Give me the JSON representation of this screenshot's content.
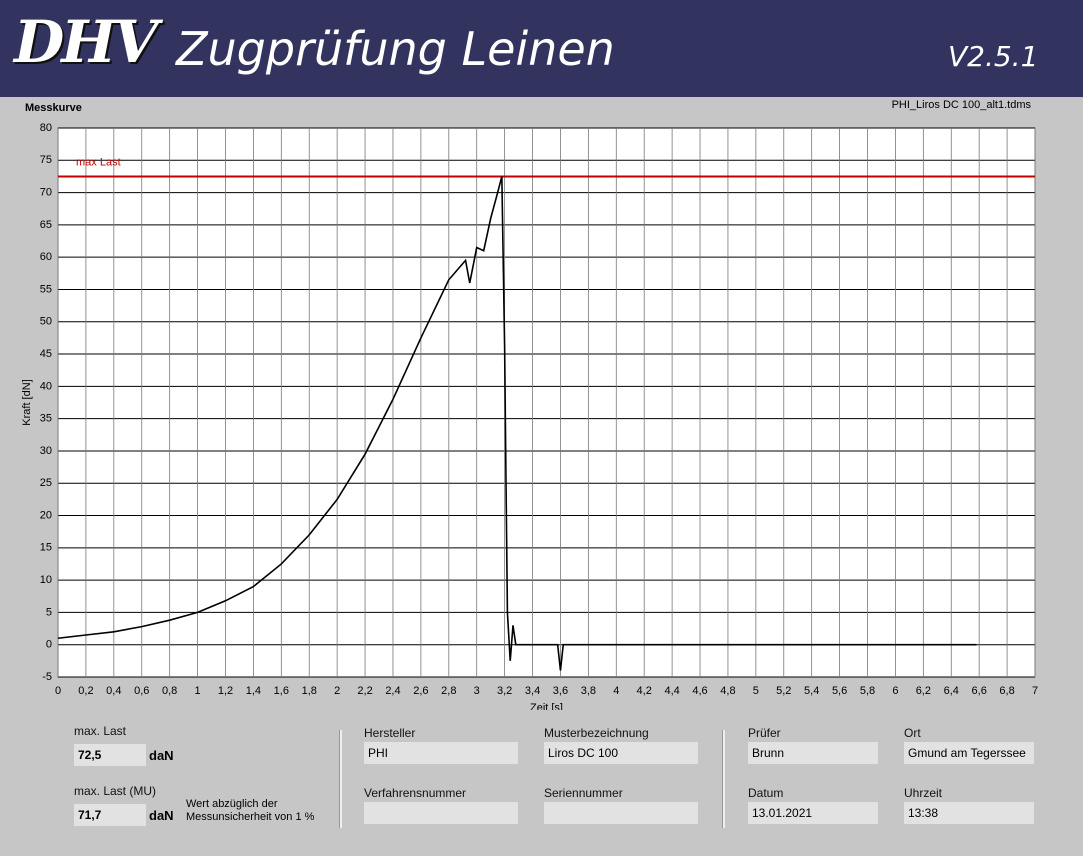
{
  "header": {
    "logo": "DHV",
    "title": "Zugprüfung Leinen",
    "version": "V2.5.1"
  },
  "panel_label": "Messkurve",
  "file_name": "PHI_Liros DC 100_alt1.tdms",
  "chart_data": {
    "type": "line",
    "x_label": "Zeit [s]",
    "y_label": "Kraft [dN]",
    "x": [
      0,
      0.2,
      0.4,
      0.6,
      0.8,
      1.0,
      1.2,
      1.4,
      1.6,
      1.8,
      2.0,
      2.2,
      2.4,
      2.6,
      2.8,
      2.92,
      2.95,
      3.0,
      3.05,
      3.1,
      3.15,
      3.18,
      3.2,
      3.21,
      3.22,
      3.24,
      3.26,
      3.28,
      3.3,
      3.4,
      3.5,
      3.58,
      3.6,
      3.62,
      3.8,
      4,
      4.5,
      5,
      5.5,
      6,
      6.5,
      6.58
    ],
    "values": [
      1,
      1.5,
      2,
      2.8,
      3.8,
      5,
      6.8,
      9,
      12.5,
      17,
      22.5,
      29.5,
      38,
      47.5,
      56.5,
      59.5,
      56,
      61.5,
      61,
      66,
      70,
      72.5,
      46,
      25,
      5,
      -2.5,
      3,
      0,
      0,
      0,
      0,
      0,
      -4,
      0,
      0,
      0,
      0,
      0,
      0,
      0,
      0,
      0
    ],
    "color": "#000000",
    "reference_line": {
      "value": 72.5,
      "label": "max Last",
      "color": "#c00000"
    },
    "xlim": [
      0,
      7
    ],
    "ylim": [
      -5,
      80
    ],
    "xticks": [
      0,
      {
        "value": 0.2,
        "label": "0,2"
      },
      {
        "value": 0.4,
        "label": "0,4"
      },
      {
        "value": 0.6,
        "label": "0,6"
      },
      {
        "value": 0.8,
        "label": "0,8"
      },
      1,
      {
        "value": 1.2,
        "label": "1,2"
      },
      {
        "value": 1.4,
        "label": "1,4"
      },
      {
        "value": 1.6,
        "label": "1,6"
      },
      {
        "value": 1.8,
        "label": "1,8"
      },
      2,
      {
        "value": 2.2,
        "label": "2,2"
      },
      {
        "value": 2.4,
        "label": "2,4"
      },
      {
        "value": 2.6,
        "label": "2,6"
      },
      {
        "value": 2.8,
        "label": "2,8"
      },
      3,
      {
        "value": 3.2,
        "label": "3,2"
      },
      {
        "value": 3.4,
        "label": "3,4"
      },
      {
        "value": 3.6,
        "label": "3,6"
      },
      {
        "value": 3.8,
        "label": "3,8"
      },
      4,
      {
        "value": 4.2,
        "label": "4,2"
      },
      {
        "value": 4.4,
        "label": "4,4"
      },
      {
        "value": 4.6,
        "label": "4,6"
      },
      {
        "value": 4.8,
        "label": "4,8"
      },
      5,
      {
        "value": 5.2,
        "label": "5,2"
      },
      {
        "value": 5.4,
        "label": "5,4"
      },
      {
        "value": 5.6,
        "label": "5,6"
      },
      {
        "value": 5.8,
        "label": "5,8"
      },
      6,
      {
        "value": 6.2,
        "label": "6,2"
      },
      {
        "value": 6.4,
        "label": "6,4"
      },
      {
        "value": 6.6,
        "label": "6,6"
      },
      {
        "value": 6.8,
        "label": "6,8"
      },
      7
    ],
    "yticks": [
      -5,
      0,
      5,
      10,
      15,
      20,
      25,
      30,
      35,
      40,
      45,
      50,
      55,
      60,
      65,
      70,
      75,
      80
    ],
    "grid": true
  },
  "results": {
    "max_load": {
      "label": "max. Last",
      "value": "72,5",
      "unit": "daN"
    },
    "max_load_mu": {
      "label": "max. Last (MU)",
      "value": "71,7",
      "unit": "daN",
      "note": [
        "Wert abzüglich der",
        "Messunsicherheit von 1 %"
      ]
    }
  },
  "fields": [
    {
      "label": "Hersteller",
      "value": "PHI"
    },
    {
      "label": "Musterbezeichnung",
      "value": "Liros DC 100"
    },
    {
      "label": "Verfahrensnummer"
    },
    {
      "label": "Seriennummer"
    },
    {
      "label": "Prüfer",
      "value": "Brunn"
    },
    {
      "label": "Ort",
      "value": "Gmund am Tegerssee"
    },
    {
      "label": "Datum",
      "value": "13.01.2021"
    },
    {
      "label": "Uhrzeit",
      "value": "13:38"
    }
  ]
}
